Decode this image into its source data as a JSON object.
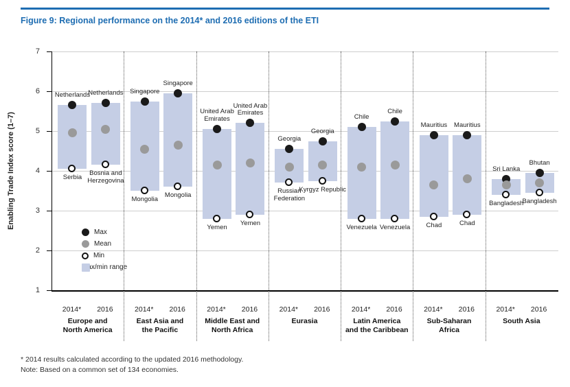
{
  "page": {
    "title": "Figure 9: Regional performance on the 2014* and 2016 editions of the ETI"
  },
  "colors": {
    "accent": "#1e6db2",
    "range": "#c5cee5",
    "max": "#1a1a1a",
    "mean": "#9a9a9a",
    "grid": "#cdcdcd"
  },
  "legend": {
    "items": [
      {
        "label": "Max",
        "marker": "max"
      },
      {
        "label": "Mean",
        "marker": "mean"
      },
      {
        "label": "Min",
        "marker": "min"
      },
      {
        "label": "Max/min range",
        "marker": "range"
      }
    ]
  },
  "footnotes": {
    "methodology": "* 2014 results calculated according to the updated 2016 methodology.",
    "note": "Note: Based on a common set of 134 economies."
  },
  "chart_data": {
    "type": "range-bar",
    "title": "Figure 9: Regional performance on the 2014* and 2016 editions of the ETI",
    "ylabel": "Enabling Trade Index score (1–7)",
    "ylim": [
      1,
      7
    ],
    "yticks": [
      1,
      2,
      3,
      4,
      5,
      6,
      7
    ],
    "grid": true,
    "editions": [
      "2014*",
      "2016"
    ],
    "regions": [
      {
        "name": "Europe and North America",
        "name_lines": [
          "Europe and",
          "North America"
        ],
        "bars": [
          {
            "edition": "2014*",
            "max": 5.65,
            "max_label": "Netherlands",
            "mean": 4.95,
            "min": 4.05,
            "min_label": "Serbia"
          },
          {
            "edition": "2016",
            "max": 5.7,
            "max_label": "Netherlands",
            "mean": 5.05,
            "min": 4.15,
            "min_label": "Bosnia and Herzegovina"
          }
        ]
      },
      {
        "name": "East Asia and the Pacific",
        "name_lines": [
          "East Asia and",
          "the Pacific"
        ],
        "bars": [
          {
            "edition": "2014*",
            "max": 5.75,
            "max_label": "Singapore",
            "mean": 4.55,
            "min": 3.5,
            "min_label": "Mongolia"
          },
          {
            "edition": "2016",
            "max": 5.95,
            "max_label": "Singapore",
            "mean": 4.65,
            "min": 3.6,
            "min_label": "Mongolia"
          }
        ]
      },
      {
        "name": "Middle East and North Africa",
        "name_lines": [
          "Middle East and",
          "North Africa"
        ],
        "bars": [
          {
            "edition": "2014*",
            "max": 5.05,
            "max_label": "United Arab Emirates",
            "mean": 4.15,
            "min": 2.8,
            "min_label": "Yemen"
          },
          {
            "edition": "2016",
            "max": 5.2,
            "max_label": "United Arab Emirates",
            "mean": 4.2,
            "min": 2.9,
            "min_label": "Yemen"
          }
        ]
      },
      {
        "name": "Eurasia",
        "name_lines": [
          "Eurasia"
        ],
        "bars": [
          {
            "edition": "2014*",
            "max": 4.55,
            "max_label": "Georgia",
            "mean": 4.1,
            "min": 3.7,
            "min_label": "Russian Federation"
          },
          {
            "edition": "2016",
            "max": 4.75,
            "max_label": "Georgia",
            "mean": 4.15,
            "min": 3.75,
            "min_label": "Kyrgyz Republic"
          }
        ]
      },
      {
        "name": "Latin America and the Caribbean",
        "name_lines": [
          "Latin America",
          "and the Caribbean"
        ],
        "bars": [
          {
            "edition": "2014*",
            "max": 5.1,
            "max_label": "Chile",
            "mean": 4.1,
            "min": 2.8,
            "min_label": "Venezuela"
          },
          {
            "edition": "2016",
            "max": 5.25,
            "max_label": "Chile",
            "mean": 4.15,
            "min": 2.8,
            "min_label": "Venezuela"
          }
        ]
      },
      {
        "name": "Sub-Saharan Africa",
        "name_lines": [
          "Sub-Saharan",
          "Africa"
        ],
        "bars": [
          {
            "edition": "2014*",
            "max": 4.9,
            "max_label": "Mauritius",
            "mean": 3.65,
            "min": 2.85,
            "min_label": "Chad"
          },
          {
            "edition": "2016",
            "max": 4.9,
            "max_label": "Mauritius",
            "mean": 3.8,
            "min": 2.9,
            "min_label": "Chad"
          }
        ]
      },
      {
        "name": "South Asia",
        "name_lines": [
          "South Asia"
        ],
        "bars": [
          {
            "edition": "2014*",
            "max": 3.8,
            "max_label": "Sri Lanka",
            "mean": 3.65,
            "min": 3.4,
            "min_label": "Bangladesh"
          },
          {
            "edition": "2016",
            "max": 3.95,
            "max_label": "Bhutan",
            "mean": 3.7,
            "min": 3.45,
            "min_label": "Bangladesh"
          }
        ]
      }
    ]
  }
}
